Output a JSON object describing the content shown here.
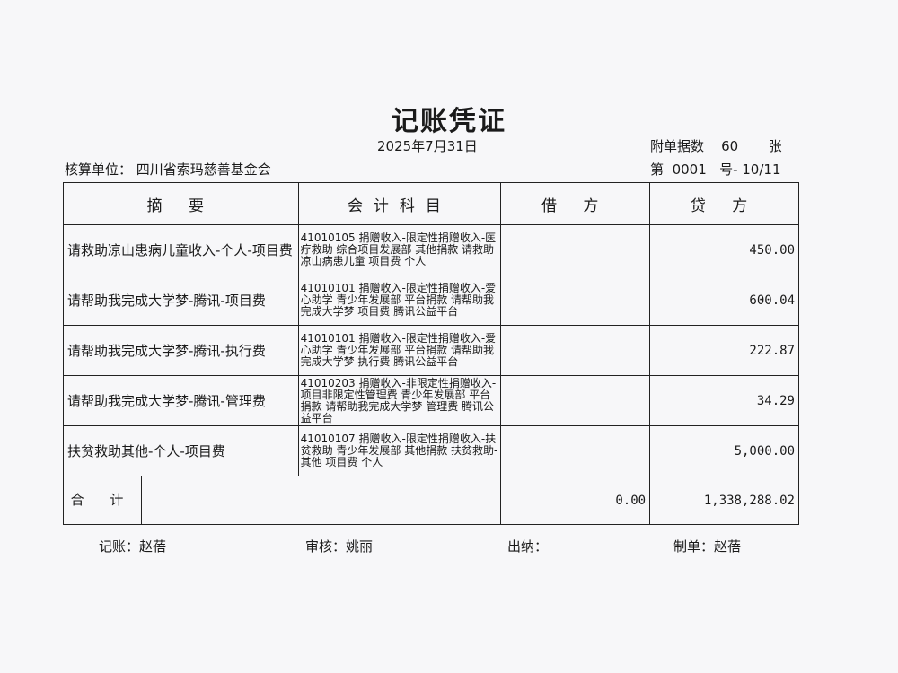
{
  "title": "记账凭证",
  "date": "2025年7月31日",
  "attachments": {
    "label": "附单据数",
    "count": "60",
    "unit": "张"
  },
  "unit": {
    "label": "核算单位：",
    "name": "四川省索玛慈善基金会"
  },
  "voucher_no": {
    "prefix": "第",
    "number": "0001",
    "suffix": "号-",
    "page": "10/11"
  },
  "headers": [
    "摘 要",
    "会计科目",
    "借 方",
    "贷 方"
  ],
  "rows": [
    {
      "summary": "请救助凉山患病儿童收入-个人-项目费",
      "account": "41010105 捐赠收入-限定性捐赠收入-医疗救助 综合项目发展部 其他捐款 请救助凉山病患儿童 项目费 个人",
      "debit": "",
      "credit": "450.00"
    },
    {
      "summary": "请帮助我完成大学梦-腾讯-项目费",
      "account": "41010101 捐赠收入-限定性捐赠收入-爱心助学 青少年发展部 平台捐款 请帮助我完成大学梦 项目费 腾讯公益平台",
      "debit": "",
      "credit": "600.04"
    },
    {
      "summary": "请帮助我完成大学梦-腾讯-执行费",
      "account": "41010101 捐赠收入-限定性捐赠收入-爱心助学 青少年发展部 平台捐款 请帮助我完成大学梦 执行费 腾讯公益平台",
      "debit": "",
      "credit": "222.87"
    },
    {
      "summary": "请帮助我完成大学梦-腾讯-管理费",
      "account": "41010203 捐赠收入-非限定性捐赠收入-项目非限定性管理费 青少年发展部 平台捐款 请帮助我完成大学梦 管理费 腾讯公益平台",
      "debit": "",
      "credit": "34.29"
    },
    {
      "summary": "扶贫救助其他-个人-项目费",
      "account": "41010107 捐赠收入-限定性捐赠收入-扶贫救助 青少年发展部 其他捐款 扶贫救助-其他 项目费 个人",
      "debit": "",
      "credit": "5,000.00"
    }
  ],
  "total": {
    "label": "合 计",
    "debit": "0.00",
    "credit": "1,338,288.02"
  },
  "footer": {
    "bookkeeper": "记账：赵蓓",
    "reviewer": "审核：姚丽",
    "cashier": "出纳：",
    "preparer": "制单：赵蓓"
  }
}
